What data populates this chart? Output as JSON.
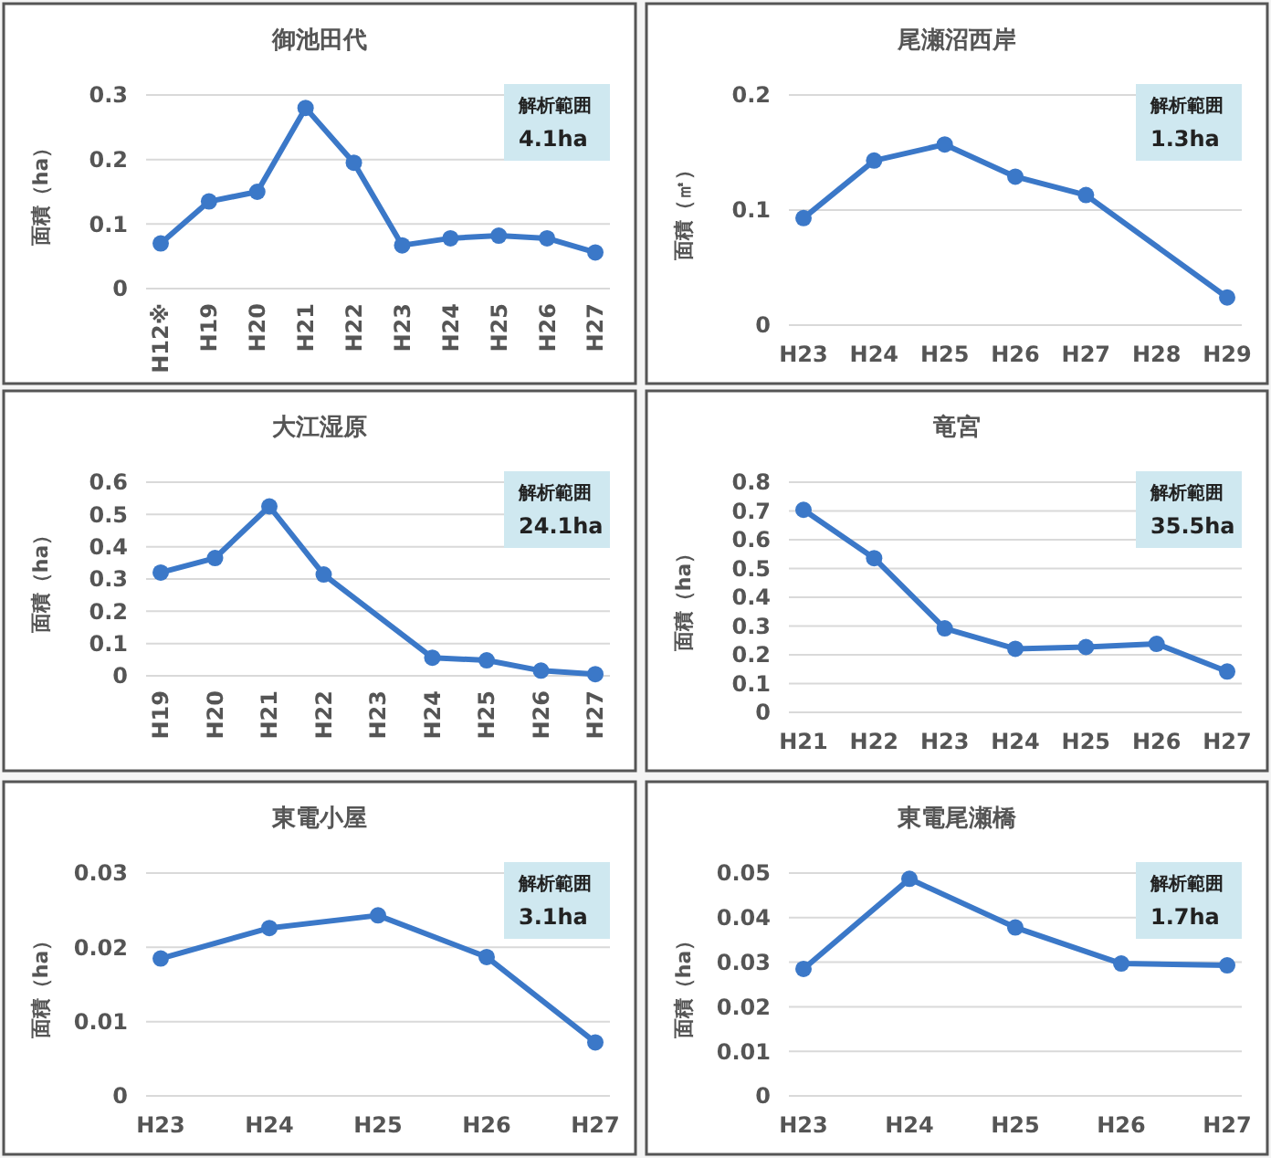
{
  "chart_data": [
    {
      "type": "line",
      "title": "御池田代",
      "ylabel": "面積（ha）",
      "categories": [
        "H12※",
        "H19",
        "H20",
        "H21",
        "H22",
        "H23",
        "H24",
        "H25",
        "H26",
        "H27"
      ],
      "series": [
        {
          "color": "#3b78c8",
          "values": [
            0.07,
            0.135,
            0.15,
            0.28,
            0.195,
            0.067,
            0.078,
            0.082,
            0.078,
            0.056
          ]
        }
      ],
      "ylim": [
        0,
        0.3
      ],
      "yticks": [
        0,
        0.1,
        0.2,
        0.3
      ],
      "grid": "y",
      "marker": "circle",
      "line_style": "solid",
      "annotations": [
        "解析範囲",
        "4.1ha"
      ]
    },
    {
      "type": "line",
      "title": "尾瀬沼西岸",
      "ylabel": "面積（㎡）",
      "categories": [
        "H23",
        "H24",
        "H25",
        "H26",
        "H27",
        "H28",
        "H29"
      ],
      "series": [
        {
          "color": "#3b78c8",
          "values": [
            0.093,
            0.143,
            0.157,
            0.129,
            0.113,
            null,
            0.024
          ]
        }
      ],
      "ylim": [
        0,
        0.2
      ],
      "yticks": [
        0,
        0.1,
        0.2
      ],
      "grid": "y",
      "marker": "circle",
      "line_style": "solid",
      "annotations": [
        "解析範囲",
        "1.3ha"
      ]
    },
    {
      "type": "line",
      "title": "大江湿原",
      "ylabel": "面積（ha）",
      "categories": [
        "H19",
        "H20",
        "H21",
        "H22",
        "H23",
        "H24",
        "H25",
        "H26",
        "H27"
      ],
      "series": [
        {
          "color": "#3b78c8",
          "values": [
            0.32,
            0.365,
            0.525,
            0.314,
            null,
            0.056,
            0.048,
            0.016,
            0.005
          ]
        }
      ],
      "ylim": [
        0,
        0.6
      ],
      "yticks": [
        0,
        0.1,
        0.2,
        0.3,
        0.4,
        0.5,
        0.6
      ],
      "grid": "y",
      "marker": "circle",
      "line_style": "solid",
      "annotations": [
        "解析範囲",
        "24.1ha"
      ]
    },
    {
      "type": "line",
      "title": "竜宮",
      "ylabel": "面積（ha）",
      "categories": [
        "H21",
        "H22",
        "H23",
        "H24",
        "H25",
        "H26",
        "H27"
      ],
      "series": [
        {
          "color": "#3b78c8",
          "values": [
            0.704,
            0.536,
            0.292,
            0.221,
            0.227,
            0.238,
            0.142
          ]
        }
      ],
      "ylim": [
        0,
        0.8
      ],
      "yticks": [
        0,
        0.1,
        0.2,
        0.3,
        0.4,
        0.5,
        0.6,
        0.7,
        0.8
      ],
      "grid": "y",
      "marker": "circle",
      "line_style": "solid",
      "annotations": [
        "解析範囲",
        "35.5ha"
      ]
    },
    {
      "type": "line",
      "title": "東電小屋",
      "ylabel": "面積（ha）",
      "categories": [
        "H23",
        "H24",
        "H25",
        "H26",
        "H27"
      ],
      "series": [
        {
          "color": "#3b78c8",
          "values": [
            0.0185,
            0.0226,
            0.0243,
            0.0187,
            0.0072
          ]
        }
      ],
      "ylim": [
        0,
        0.03
      ],
      "yticks": [
        0,
        0.01,
        0.02,
        0.03
      ],
      "grid": "y",
      "marker": "circle",
      "line_style": "solid",
      "annotations": [
        "解析範囲",
        "3.1ha"
      ]
    },
    {
      "type": "line",
      "title": "東電尾瀬橋",
      "ylabel": "面積（ha）",
      "categories": [
        "H23",
        "H24",
        "H25",
        "H26",
        "H27"
      ],
      "series": [
        {
          "color": "#3b78c8",
          "values": [
            0.0285,
            0.0487,
            0.0378,
            0.0297,
            0.0293
          ]
        }
      ],
      "ylim": [
        0,
        0.05
      ],
      "yticks": [
        0,
        0.01,
        0.02,
        0.03,
        0.04,
        0.05
      ],
      "grid": "y",
      "marker": "circle",
      "line_style": "solid",
      "annotations": [
        "解析範囲",
        "1.7ha"
      ]
    }
  ]
}
